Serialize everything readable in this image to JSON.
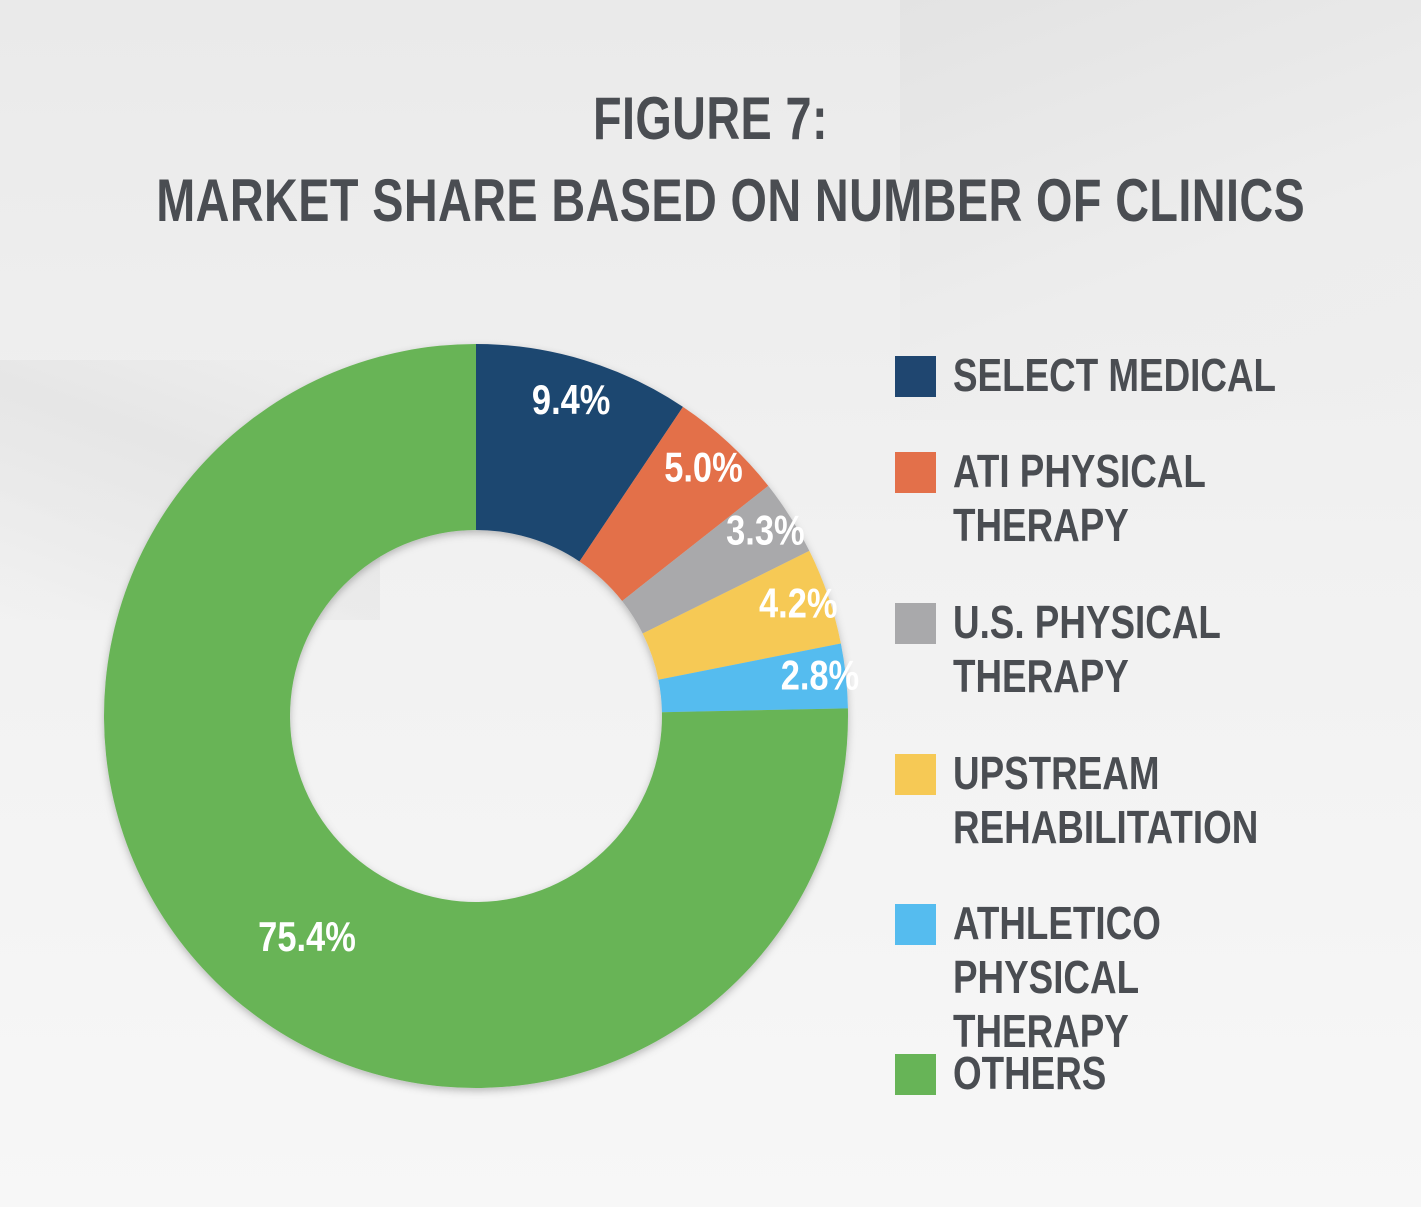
{
  "title": {
    "line1": "FIGURE 7:",
    "line2": "MARKET SHARE BASED ON NUMBER OF CLINICS"
  },
  "chart_data": {
    "type": "pie",
    "style": "donut",
    "title": "FIGURE 7: MARKET SHARE BASED ON NUMBER OF CLINICS",
    "start": "12 o'clock, clockwise",
    "legend": "right",
    "slices": [
      {
        "name": "SELECT MEDICAL",
        "value": 9.4,
        "label": "9.4%",
        "color": "#1f4670"
      },
      {
        "name": "ATI PHYSICAL THERAPY",
        "value": 5.0,
        "label": "5.0%",
        "color": "#e3704a"
      },
      {
        "name": "U.S. PHYSICAL THERAPY",
        "value": 3.3,
        "label": "3.3%",
        "color": "#a9a9ab"
      },
      {
        "name": "UPSTREAM REHABILITATION",
        "value": 4.2,
        "label": "4.2%",
        "color": "#f6c955"
      },
      {
        "name": "ATHLETICO PHYSICAL THERAPY",
        "value": 2.8,
        "label": "2.8%",
        "color": "#55bcef"
      },
      {
        "name": "OTHERS",
        "value": 75.4,
        "label": "75.4%",
        "color": "#67b457"
      }
    ]
  },
  "legend": {
    "items": [
      {
        "label": "SELECT MEDICAL",
        "color": "#1f4670"
      },
      {
        "label": "ATI PHYSICAL\nTHERAPY",
        "color": "#e3704a"
      },
      {
        "label": "U.S. PHYSICAL\nTHERAPY",
        "color": "#a9a9ab"
      },
      {
        "label": "UPSTREAM\nREHABILITATION",
        "color": "#f6c955"
      },
      {
        "label": "ATHLETICO\nPHYSICAL THERAPY",
        "color": "#55bcef"
      },
      {
        "label": "OTHERS",
        "color": "#67b457"
      }
    ]
  }
}
